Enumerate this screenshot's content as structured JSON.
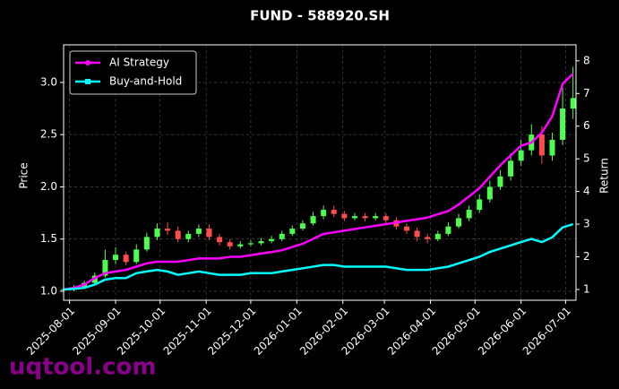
{
  "chart_data": {
    "type": "candlestick",
    "title": "FUND - 588920.SH",
    "y_label": "Price",
    "y2_label": "Return",
    "watermark": "uqtool.com",
    "x": [
      "2025-07-28",
      "2025-08-04",
      "2025-08-11",
      "2025-08-18",
      "2025-08-25",
      "2025-09-01",
      "2025-09-08",
      "2025-09-15",
      "2025-09-22",
      "2025-09-29",
      "2025-10-06",
      "2025-10-13",
      "2025-10-20",
      "2025-10-27",
      "2025-11-03",
      "2025-11-10",
      "2025-11-17",
      "2025-11-24",
      "2025-12-01",
      "2025-12-08",
      "2025-12-15",
      "2025-12-22",
      "2025-12-29",
      "2026-01-05",
      "2026-01-12",
      "2026-01-19",
      "2026-01-26",
      "2026-02-02",
      "2026-02-09",
      "2026-02-16",
      "2026-02-23",
      "2026-03-02",
      "2026-03-09",
      "2026-03-16",
      "2026-03-23",
      "2026-03-30",
      "2026-04-06",
      "2026-04-13",
      "2026-04-20",
      "2026-04-27",
      "2026-05-04",
      "2026-05-11",
      "2026-05-18",
      "2026-05-25",
      "2026-06-01",
      "2026-06-08",
      "2026-06-15",
      "2026-06-22",
      "2026-06-29",
      "2026-07-06"
    ],
    "open": [
      1.01,
      1.02,
      1.04,
      1.08,
      1.15,
      1.3,
      1.35,
      1.28,
      1.4,
      1.52,
      1.6,
      1.58,
      1.5,
      1.55,
      1.6,
      1.52,
      1.47,
      1.43,
      1.45,
      1.46,
      1.48,
      1.5,
      1.55,
      1.6,
      1.65,
      1.72,
      1.78,
      1.74,
      1.7,
      1.72,
      1.7,
      1.72,
      1.68,
      1.62,
      1.58,
      1.52,
      1.5,
      1.55,
      1.62,
      1.7,
      1.78,
      1.88,
      2.0,
      2.1,
      2.25,
      2.35,
      2.5,
      2.3,
      2.45,
      2.75
    ],
    "high": [
      1.04,
      1.06,
      1.1,
      1.18,
      1.4,
      1.42,
      1.38,
      1.45,
      1.56,
      1.65,
      1.66,
      1.62,
      1.58,
      1.64,
      1.64,
      1.55,
      1.5,
      1.48,
      1.49,
      1.51,
      1.53,
      1.58,
      1.63,
      1.68,
      1.76,
      1.82,
      1.82,
      1.77,
      1.75,
      1.75,
      1.75,
      1.75,
      1.71,
      1.65,
      1.61,
      1.55,
      1.58,
      1.66,
      1.74,
      1.82,
      1.93,
      2.06,
      2.16,
      2.32,
      2.45,
      2.6,
      2.58,
      2.52,
      2.95,
      3.15
    ],
    "low": [
      0.99,
      1.0,
      1.02,
      1.06,
      1.13,
      1.26,
      1.25,
      1.26,
      1.38,
      1.49,
      1.54,
      1.47,
      1.47,
      1.52,
      1.49,
      1.44,
      1.4,
      1.41,
      1.43,
      1.44,
      1.46,
      1.48,
      1.53,
      1.58,
      1.63,
      1.69,
      1.71,
      1.67,
      1.68,
      1.67,
      1.68,
      1.65,
      1.59,
      1.55,
      1.48,
      1.46,
      1.48,
      1.53,
      1.6,
      1.67,
      1.75,
      1.85,
      1.97,
      2.06,
      2.2,
      2.3,
      2.22,
      2.25,
      2.4,
      2.65
    ],
    "close": [
      1.02,
      1.04,
      1.08,
      1.15,
      1.3,
      1.35,
      1.28,
      1.4,
      1.52,
      1.6,
      1.58,
      1.5,
      1.55,
      1.6,
      1.52,
      1.47,
      1.43,
      1.45,
      1.46,
      1.48,
      1.5,
      1.55,
      1.6,
      1.65,
      1.72,
      1.78,
      1.74,
      1.7,
      1.72,
      1.7,
      1.72,
      1.68,
      1.62,
      1.58,
      1.52,
      1.5,
      1.55,
      1.62,
      1.7,
      1.78,
      1.88,
      2.0,
      2.1,
      2.25,
      2.35,
      2.5,
      2.3,
      2.45,
      2.75,
      2.85
    ],
    "up_color": "#4dff4d",
    "down_color": "#ff4d4d",
    "series": [
      {
        "name": "AI Strategy",
        "color": "#ff00ff",
        "axis": "y2",
        "marker": "circle",
        "values": [
          1.0,
          1.05,
          1.15,
          1.35,
          1.5,
          1.55,
          1.6,
          1.7,
          1.8,
          1.85,
          1.85,
          1.85,
          1.9,
          1.95,
          1.95,
          1.95,
          2.0,
          2.0,
          2.05,
          2.1,
          2.15,
          2.2,
          2.3,
          2.4,
          2.55,
          2.7,
          2.75,
          2.8,
          2.85,
          2.9,
          2.95,
          3.0,
          3.05,
          3.1,
          3.15,
          3.2,
          3.3,
          3.4,
          3.6,
          3.85,
          4.1,
          4.45,
          4.8,
          5.1,
          5.4,
          5.5,
          5.8,
          6.3,
          7.3,
          7.6
        ]
      },
      {
        "name": "Buy-and-Hold",
        "color": "#00ffff",
        "axis": "y2",
        "marker": "square",
        "values": [
          1.0,
          1.02,
          1.05,
          1.15,
          1.3,
          1.35,
          1.35,
          1.5,
          1.55,
          1.6,
          1.55,
          1.45,
          1.5,
          1.55,
          1.5,
          1.45,
          1.45,
          1.45,
          1.5,
          1.5,
          1.5,
          1.55,
          1.6,
          1.65,
          1.7,
          1.75,
          1.75,
          1.7,
          1.7,
          1.7,
          1.7,
          1.7,
          1.65,
          1.6,
          1.6,
          1.6,
          1.65,
          1.7,
          1.8,
          1.9,
          2.0,
          2.15,
          2.25,
          2.35,
          2.45,
          2.55,
          2.45,
          2.6,
          2.9,
          3.0
        ]
      }
    ],
    "xlim": [
      "2025-07-28",
      "2026-07-08"
    ],
    "xticks": [
      "2025-08-01",
      "2025-09-01",
      "2025-10-01",
      "2025-11-01",
      "2025-12-01",
      "2026-01-01",
      "2026-02-01",
      "2026-03-01",
      "2026-04-01",
      "2026-05-01",
      "2026-06-01",
      "2026-07-01"
    ],
    "ylim": [
      0.914,
      3.36
    ],
    "yticks": [
      {
        "value": 1,
        "label": "1.0"
      },
      1.5,
      {
        "value": 2,
        "label": "2.0"
      },
      2.5,
      {
        "value": 3,
        "label": "3.0"
      }
    ],
    "y2lim": [
      0.67,
      8.49
    ],
    "y2ticks": [
      1,
      2,
      3,
      4,
      5,
      6,
      7,
      8
    ],
    "grid": true,
    "legend": "upper left"
  }
}
